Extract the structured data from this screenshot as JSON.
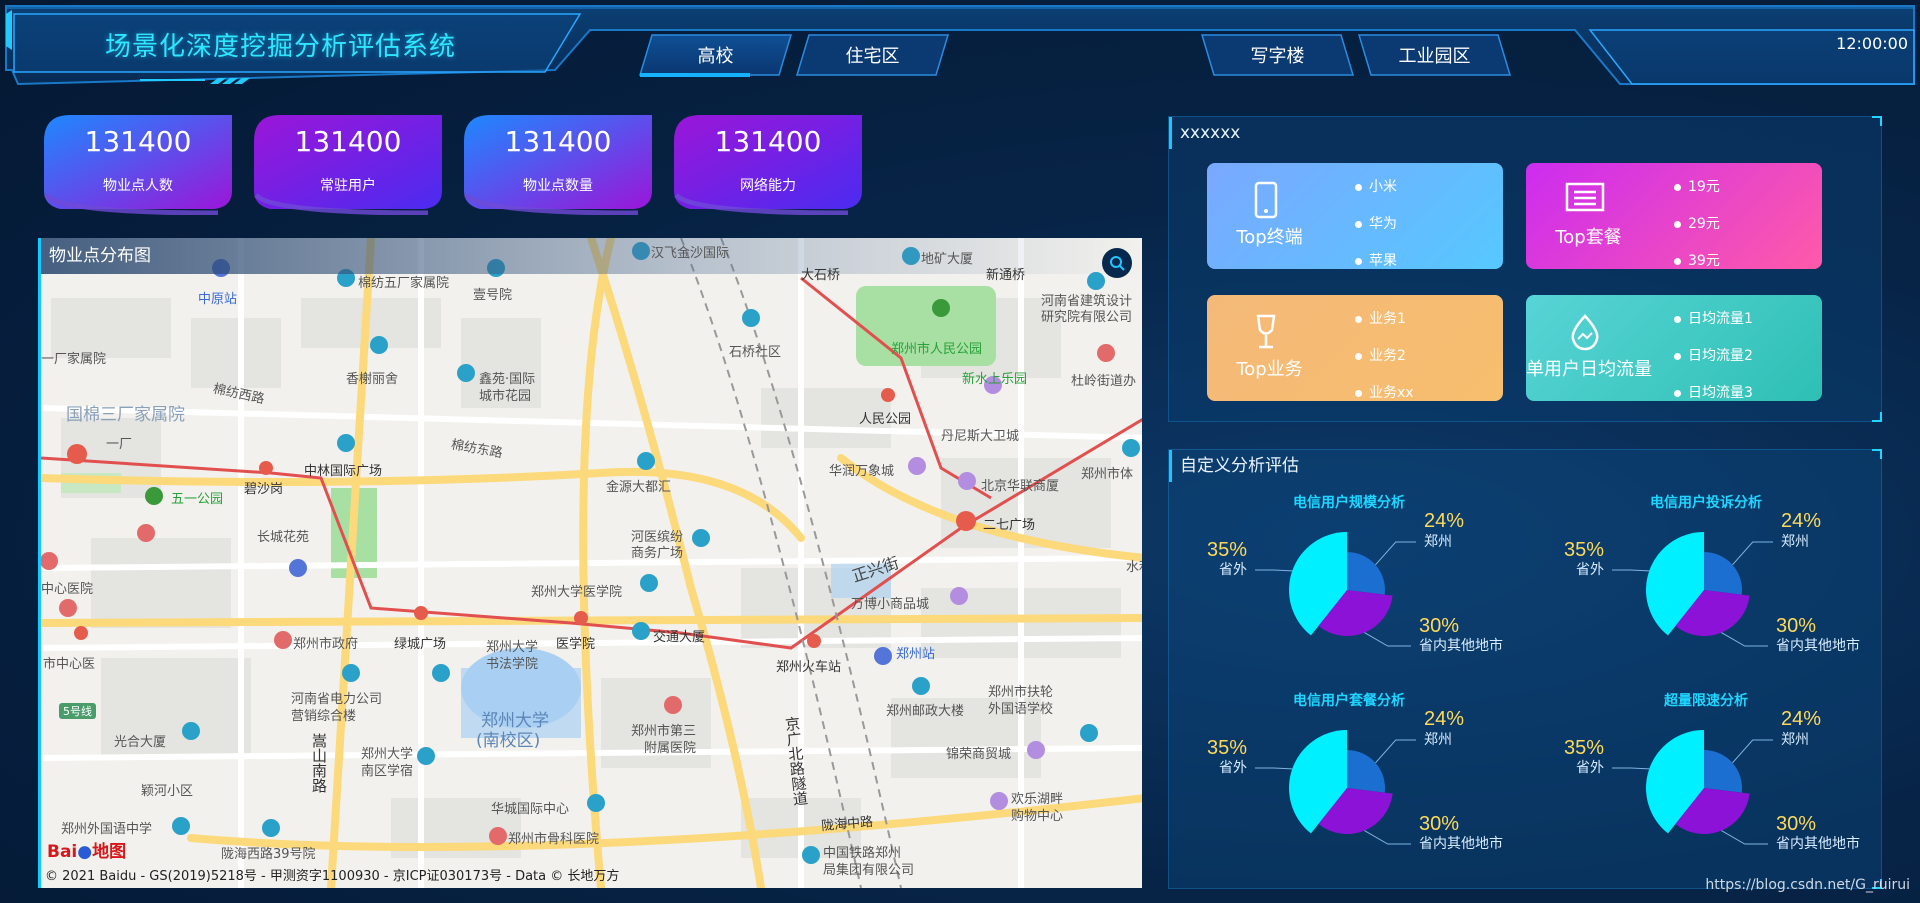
{
  "header": {
    "title": "场景化深度挖掘分析评估系统",
    "time": "12:00:00",
    "tabs": [
      {
        "label": "高校"
      },
      {
        "label": "住宅区"
      },
      {
        "label": "写字楼"
      },
      {
        "label": "工业园区"
      }
    ]
  },
  "kpis": [
    {
      "value": "131400",
      "label": "物业点人数"
    },
    {
      "value": "131400",
      "label": "常驻用户"
    },
    {
      "value": "131400",
      "label": "物业点数量"
    },
    {
      "value": "131400",
      "label": "网络能力"
    }
  ],
  "map": {
    "title": "物业点分布图",
    "logo_text": "Bai",
    "logo_text2": "地图",
    "copyright": "© 2021 Baidu - GS(2019)5218号 - 甲测资字1100930 - 京ICP证030173号 - Data © 长地万方",
    "labels": {
      "l1": "汉飞金沙国际",
      "l2": "地矿大厦",
      "l3": "大石桥",
      "l4": "新通桥",
      "l5": "河南省建筑设计",
      "l6": "研究院有限公司",
      "l7": "中原站",
      "l8": "棉纺五厂家属院",
      "l9": "壹号院",
      "l10": "石桥社区",
      "l11": "郑州市人民公园",
      "l12": "新水上乐园",
      "l13": "杜岭街道办",
      "l14": "一厂家属院",
      "l15": "国棉三厂家属院",
      "l16": "棉纺西路",
      "l17": "香榭丽舍",
      "l18": "鑫苑·国际",
      "l19": "城市花园",
      "l20": "人民公园",
      "l21": "丹尼斯大卫城",
      "l22": "五一公园",
      "l23": "碧沙岗",
      "l24": "中林国际广场",
      "l25": "棉纺东路",
      "l26": "金源大都汇",
      "l27": "华润万象城",
      "l28": "北京华联商厦",
      "l29": "郑州市体",
      "l30": "长城花苑",
      "l31": "河医缤纷",
      "l32": "商务广场",
      "l33": "二七广场",
      "l34": "正兴街",
      "l35": "郑州大学医学院",
      "l36": "万博小商品城",
      "l37": "中心医院",
      "l38": "郑州市政府",
      "l39": "绿城广场",
      "l40": "郑州大学",
      "l41": "书法学院",
      "l42": "医学院",
      "l43": "交通大厦",
      "l44": "郑州火车站",
      "l45": "郑州站",
      "l46": "河南省电力公司",
      "l47": "营销综合楼",
      "l48": "郑州大学",
      "l49": "(南校区)",
      "l50": "郑州市第三",
      "l51": "附属医院",
      "l52": "郑州邮政大楼",
      "l53": "郑州市扶轮",
      "l54": "外国语学校",
      "l55": "光合大厦",
      "l56": "郑州大学",
      "l57": "南区学宿",
      "l58": "嵩山南路",
      "l59": "京广北路隧道",
      "l60": "锦荣商贸城",
      "l61": "颖河小区",
      "l62": "华城国际中心",
      "l63": "陇海中路",
      "l64": "欢乐湖畔",
      "l65": "购物中心",
      "l66": "郑州外国语中学",
      "l67": "陇海西路39号院",
      "l68": "郑州市骨科医院",
      "l69": "中国铁路郑州",
      "l70": "局集团有限公司",
      "l71": "市中心医",
      "l72": "5号线",
      "l73": "一厂",
      "l74": "水利"
    }
  },
  "panel1": {
    "title": "xxxxxx",
    "cards": [
      {
        "name": "Top终端",
        "icon": "phone-icon",
        "items": [
          "小米",
          "华为",
          "苹果"
        ]
      },
      {
        "name": "Top套餐",
        "icon": "package-icon",
        "items": [
          "19元",
          "29元",
          "39元"
        ]
      },
      {
        "name": "Top业务",
        "icon": "wine-glass-icon",
        "items": [
          "业务1",
          "业务2",
          "业务xx"
        ]
      },
      {
        "name": "单用户日均流量",
        "icon": "water-drop-icon",
        "items": [
          "日均流量1",
          "日均流量2",
          "日均流量3"
        ]
      }
    ]
  },
  "panel2": {
    "title": "自定义分析评估",
    "pies": [
      {
        "title": "电信用户规模分析"
      },
      {
        "title": "电信用户投诉分析"
      },
      {
        "title": "电信用户套餐分析"
      },
      {
        "title": "超量限速分析"
      }
    ]
  },
  "chart_data": [
    {
      "type": "pie",
      "title": "电信用户规模分析",
      "categories": [
        "郑州",
        "省内其他地市",
        "省外"
      ],
      "values": [
        24,
        30,
        35
      ],
      "labels": [
        "24%",
        "30%",
        "35%"
      ],
      "colors": [
        "#1a6fd0",
        "#8b12d6",
        "#00f0ff"
      ]
    },
    {
      "type": "pie",
      "title": "电信用户投诉分析",
      "categories": [
        "郑州",
        "省内其他地市",
        "省外"
      ],
      "values": [
        24,
        30,
        35
      ],
      "labels": [
        "24%",
        "30%",
        "35%"
      ],
      "colors": [
        "#1a6fd0",
        "#8b12d6",
        "#00f0ff"
      ]
    },
    {
      "type": "pie",
      "title": "电信用户套餐分析",
      "categories": [
        "郑州",
        "省内其他地市",
        "省外"
      ],
      "values": [
        24,
        30,
        35
      ],
      "labels": [
        "24%",
        "30%",
        "35%"
      ],
      "colors": [
        "#1a6fd0",
        "#8b12d6",
        "#00f0ff"
      ]
    },
    {
      "type": "pie",
      "title": "超量限速分析",
      "categories": [
        "郑州",
        "省内其他地市",
        "省外"
      ],
      "values": [
        24,
        30,
        35
      ],
      "labels": [
        "24%",
        "30%",
        "35%"
      ],
      "colors": [
        "#1a6fd0",
        "#8b12d6",
        "#00f0ff"
      ]
    }
  ],
  "watermark": "https://blog.csdn.net/G_ruirui"
}
